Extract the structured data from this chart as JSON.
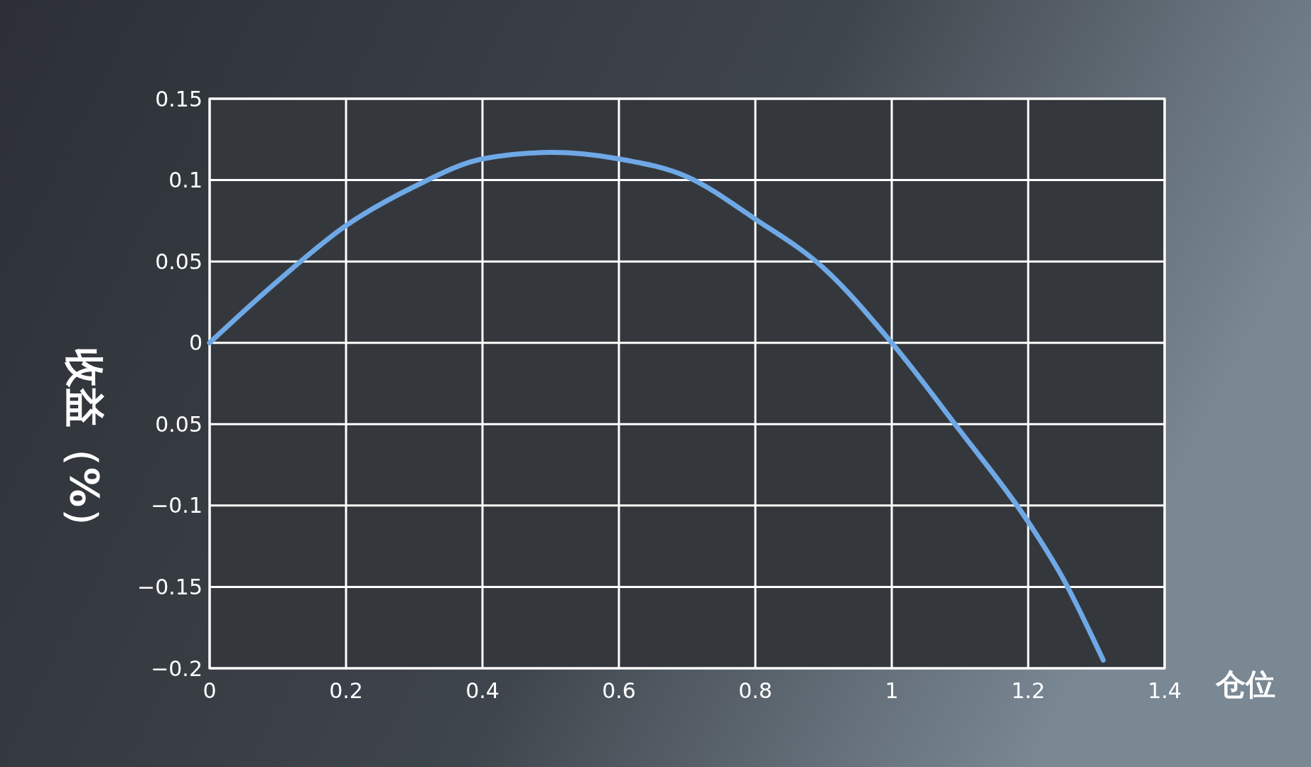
{
  "chart_data": {
    "type": "line",
    "xlabel": "仓位",
    "ylabel": "收益（%）",
    "x": [
      0,
      0.1,
      0.2,
      0.3,
      0.4,
      0.5,
      0.6,
      0.7,
      0.8,
      0.9,
      1.0,
      1.1,
      1.2,
      1.25,
      1.31
    ],
    "series": [
      {
        "color": "#6fa8e6",
        "values": [
          0,
          0.038,
          0.072,
          0.096,
          0.113,
          0.117,
          0.113,
          0.102,
          0.076,
          0.046,
          0,
          -0.054,
          -0.11,
          -0.144,
          -0.195
        ]
      }
    ],
    "xlim": [
      0,
      1.4
    ],
    "xticks": [
      0,
      0.2,
      0.4,
      0.6,
      0.8,
      1,
      1.2,
      1.4
    ],
    "ylim": [
      -0.2,
      0.15
    ],
    "yticks": [
      0.15,
      0.1,
      0.05,
      0,
      {
        "value": -0.05,
        "label": "0.05"
      },
      {
        "value": -0.1,
        "label": "−0.1"
      },
      {
        "value": -0.15,
        "label": "−0.15"
      },
      {
        "value": -0.2,
        "label": "−0.2"
      }
    ],
    "grid": true,
    "marker": "none",
    "line_style": "solid"
  }
}
